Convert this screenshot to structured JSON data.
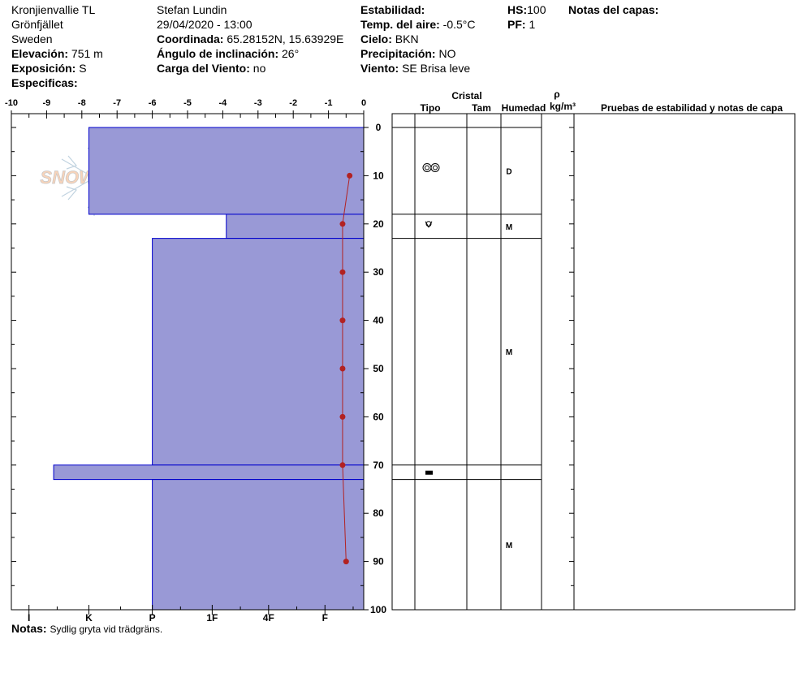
{
  "header": {
    "location": [
      "Kronjienvallie TL",
      "Grönfjället",
      "Sweden"
    ],
    "elevation": {
      "label": "Elevación:",
      "value": "751 m"
    },
    "aspect": {
      "label": "Exposición:",
      "value": "S"
    },
    "specifics": {
      "label": "Especificas:",
      "value": ""
    },
    "observer": "Stefan Lundin",
    "datetime": "29/04/2020 - 13:00",
    "coords": {
      "label": "Coordinada:",
      "value": "65.28152N, 15.63929E"
    },
    "slope": {
      "label": "Ángulo de inclinación:",
      "value": "26°"
    },
    "wind_load": {
      "label": "Carga del Viento:",
      "value": "no"
    },
    "stability": {
      "label": "Estabilidad:",
      "value": ""
    },
    "air_temp": {
      "label": "Temp. del aire:",
      "value": "-0.5°C"
    },
    "sky": {
      "label": "Cielo:",
      "value": "BKN"
    },
    "precip": {
      "label": "Precipitación:",
      "value": "NO"
    },
    "wind": {
      "label": "Viento:",
      "value": "SE  Brisa leve"
    },
    "hs": {
      "label": "HS:",
      "value": "100"
    },
    "pf": {
      "label": "PF:",
      "value": "1"
    },
    "layer_notes": {
      "label": "Notas del capas:",
      "value": ""
    }
  },
  "notes": {
    "label": "Notas:",
    "value": "Sydlig gryta vid trädgräns."
  },
  "logo": {
    "text": "SNOWPILOT"
  },
  "columns": {
    "crystal": "Cristal",
    "type": "Tipo",
    "size": "Tam",
    "moisture": "Humedad",
    "rho": "ρ",
    "density_unit": "kg/m³",
    "tests": "Pruebas de estabilidad y notas de capa"
  },
  "colors": {
    "layer_fill": "#9999d6",
    "layer_stroke": "#0000cc",
    "temp_line": "#b22222"
  },
  "chart_data": {
    "type": "snow-profile",
    "temp_axis": {
      "min": -10,
      "max": 0,
      "ticks": [
        -10,
        -9,
        -8,
        -7,
        -6,
        -5,
        -4,
        -3,
        -2,
        -1,
        0
      ],
      "labels": [
        "-10",
        "-9",
        "-8",
        "-7",
        "-6",
        "-5",
        "-4",
        "-3",
        "-2",
        "-1",
        "0"
      ]
    },
    "depth_axis": {
      "min": 0,
      "max": 100,
      "ticks": [
        0,
        10,
        20,
        30,
        40,
        50,
        60,
        70,
        80,
        90,
        100
      ],
      "labels": [
        "0",
        "10",
        "20",
        "30",
        "40",
        "50",
        "60",
        "70",
        "80",
        "90",
        "100"
      ]
    },
    "hardness_axis": {
      "labels": [
        "I",
        "K",
        "P",
        "1F",
        "4F",
        "F"
      ],
      "temp_positions": [
        -9.5,
        -7.8,
        -6,
        -4.3,
        -2.7,
        -1.1
      ]
    },
    "layers": [
      {
        "top": 0,
        "bottom": 18,
        "hardness_temp": -7.8,
        "moisture": "D",
        "crystal": "melt-forms"
      },
      {
        "top": 18,
        "bottom": 23,
        "hardness_temp": -3.9,
        "moisture": "M",
        "crystal": "rounded-melt"
      },
      {
        "top": 23,
        "bottom": 70,
        "hardness_temp": -6.0,
        "moisture": "M",
        "crystal": ""
      },
      {
        "top": 70,
        "bottom": 73,
        "hardness_temp": -8.8,
        "moisture": "",
        "crystal": "ice-layer"
      },
      {
        "top": 73,
        "bottom": 100,
        "hardness_temp": -6.0,
        "moisture": "M",
        "crystal": ""
      }
    ],
    "temperature_profile": {
      "depth": [
        10,
        20,
        30,
        40,
        50,
        60,
        70,
        90
      ],
      "temp": [
        -0.4,
        -0.6,
        -0.6,
        -0.6,
        -0.6,
        -0.6,
        -0.6,
        -0.5
      ]
    }
  }
}
